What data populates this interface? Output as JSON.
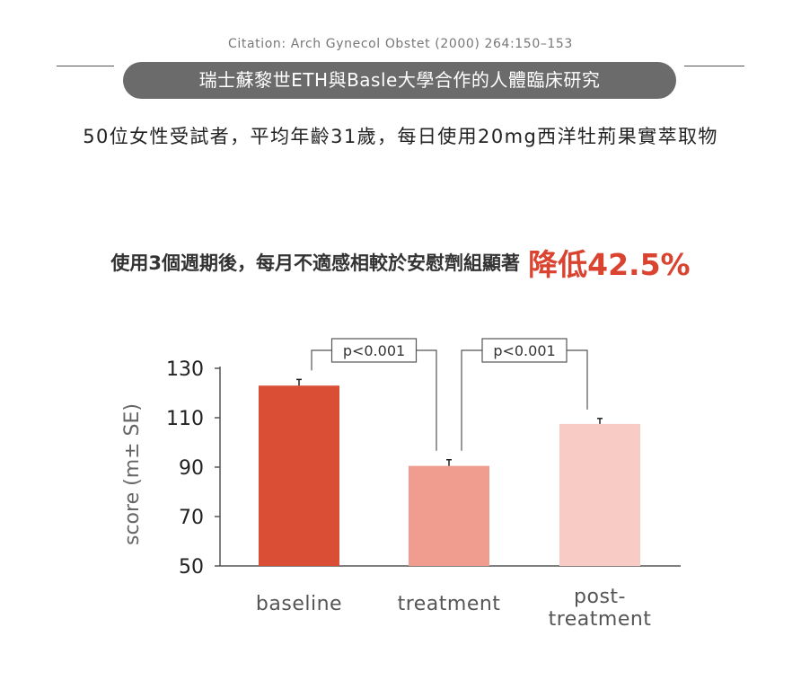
{
  "header": {
    "citation": "Citation: Arch Gynecol Obstet (2000) 264:150–153",
    "study_title": "瑞士蘇黎世ETH與Basle大學合作的人體臨床研究",
    "subtitle": "50位女性受試者，平均年齡31歲，每日使用20mg西洋牡荊果實萃取物",
    "headline_lead": "使用3個週期後，每月不適感相較於安慰劑組顯著",
    "headline_emphasis": "降低42.5%"
  },
  "colors": {
    "pill_bg": "#6b6b6b",
    "emphasis": "#d9432f",
    "axis": "#555555",
    "bar_baseline": "#d94e35",
    "bar_treatment": "#f09c8e",
    "bar_post_treatment": "#f8ccc4"
  },
  "chart_data": {
    "type": "bar",
    "ylabel": "score (m± SE)",
    "ylim": [
      50,
      130
    ],
    "yticks": [
      50,
      70,
      90,
      110,
      130
    ],
    "categories": [
      "baseline",
      "treatment",
      "post-\ntreatment"
    ],
    "values": [
      123,
      90.5,
      107.5
    ],
    "errors": [
      2.5,
      2.5,
      2.2
    ],
    "bar_colors": [
      "#d94e35",
      "#f09c8e",
      "#f8ccc4"
    ],
    "significance": [
      {
        "from": 0,
        "to": 1,
        "label": "p<0.001"
      },
      {
        "from": 1,
        "to": 2,
        "label": "p<0.001"
      }
    ],
    "grid": false,
    "legend": "none"
  }
}
